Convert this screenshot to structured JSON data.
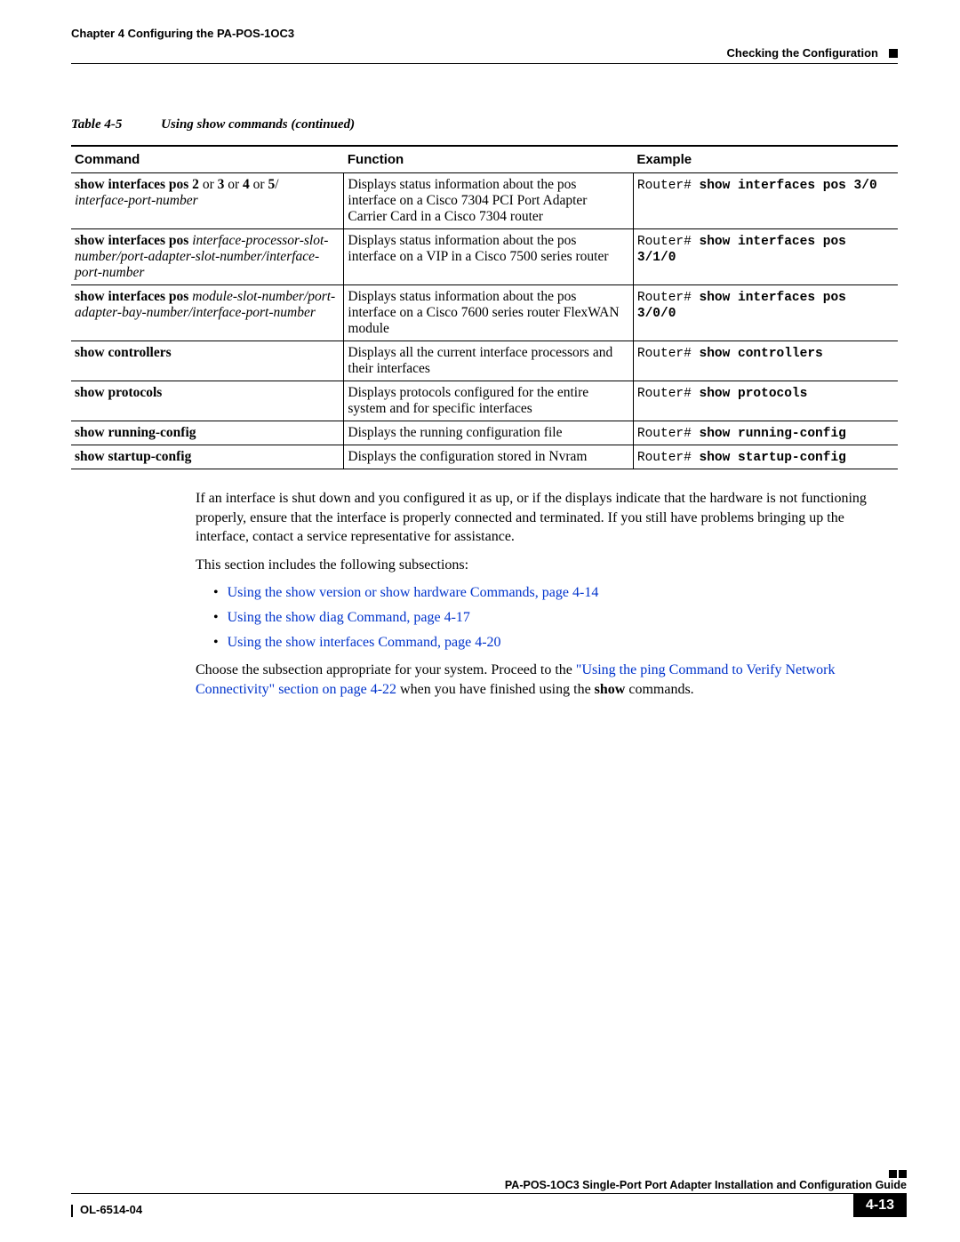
{
  "header": {
    "chapter": "Chapter 4    Configuring the PA-POS-1OC3",
    "section": "Checking the Configuration"
  },
  "table": {
    "label": "Table 4-5",
    "title": "Using show commands (continued)",
    "columns": [
      "Command",
      "Function",
      "Example"
    ],
    "col_widths_pct": [
      33,
      35,
      32
    ],
    "rows": [
      {
        "command_html": "<span class='b'>show interfaces pos 2</span> or <span class='b'>3</span> or <span class='b'>4</span> or <span class='b'>5</span>/<br><span class='i'>interface-port-number</span>",
        "function": "Displays status information about the pos interface on a Cisco 7304 PCI Port Adapter Carrier Card in a Cisco 7304 router",
        "example_html": "<span class='mono'>Router# <span class='b'>show interfaces pos 3/0</span></span>"
      },
      {
        "command_html": "<span class='b'>show interfaces pos</span> <span class='i'>interface-processor-slot-number/port-adapter-slot-number/interface-port-number</span>",
        "function": "Displays status information about the pos interface on a VIP in a Cisco 7500 series router",
        "example_html": "<span class='mono'>Router# <span class='b'>show interfaces pos 3/1/0</span></span>"
      },
      {
        "command_html": "<span class='b'>show interfaces pos</span> <span class='i'>module-slot-number/port-adapter-bay-number/interface-port-number</span>",
        "function": "Displays status information about the pos interface on a Cisco 7600 series router FlexWAN module",
        "example_html": "<span class='mono'>Router# <span class='b'>show interfaces pos 3/0/0</span></span>"
      },
      {
        "command_html": "<span class='b'>show controllers</span>",
        "function": "Displays all the current interface processors and their interfaces",
        "example_html": "<span class='mono'>Router# <span class='b'>show controllers</span></span>"
      },
      {
        "command_html": "<span class='b'>show protocols</span>",
        "function": "Displays protocols configured for the entire system and for specific interfaces",
        "example_html": "<span class='mono'>Router# <span class='b'>show protocols</span></span>"
      },
      {
        "command_html": "<span class='b'>show running-config</span>",
        "function": "Displays the running configuration file",
        "example_html": "<span class='mono'>Router# <span class='b'>show running-config</span></span>"
      },
      {
        "command_html": "<span class='b'>show startup-config</span>",
        "function": "Displays the configuration stored in Nvram",
        "example_html": "<span class='mono'>Router# <span class='b'>show startup-config</span></span>"
      }
    ]
  },
  "body": {
    "para1": "If an interface is shut down and you configured it as up, or if the displays indicate that the hardware is not functioning properly, ensure that the interface is properly connected and terminated. If you still have problems bringing up the interface, contact a service representative for assistance.",
    "para2": "This section includes the following subsections:",
    "links": [
      "Using the show version or show hardware Commands, page 4-14",
      "Using the show diag Command, page 4-17",
      "Using the show interfaces Command, page 4-20"
    ],
    "para3_pre": "Choose the subsection appropriate for your system. Proceed to the ",
    "para3_link": "\"Using the ping Command to Verify Network Connectivity\" section on page 4-22",
    "para3_post": " when you have finished using the ",
    "para3_bold": "show",
    "para3_end": " commands."
  },
  "footer": {
    "book_title": "PA-POS-1OC3 Single-Port Port Adapter Installation and Configuration Guide",
    "doc_id": "OL-6514-04",
    "page": "4-13"
  },
  "colors": {
    "link": "#0033cc",
    "text": "#000000",
    "background": "#ffffff"
  }
}
